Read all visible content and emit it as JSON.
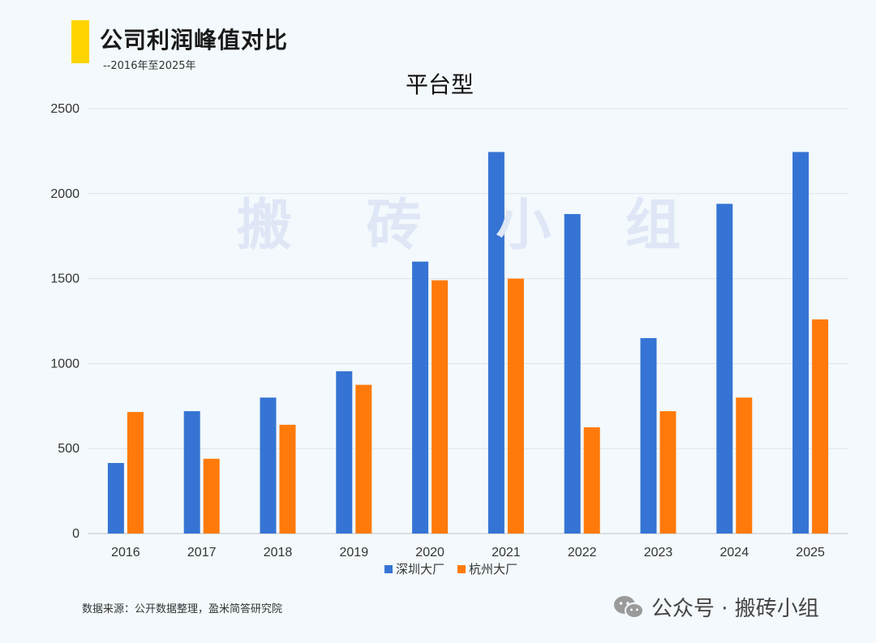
{
  "header": {
    "title": "公司利润峰值对比",
    "subtitle": "--2016年至2025年"
  },
  "watermark": "搬 砖 小 组",
  "source_note": "数据来源：公开数据整理，盈米简答研究院",
  "footer": {
    "brand_text": "公众号 · 搬砖小组",
    "icon": "wechat-icon"
  },
  "chart_data": {
    "type": "bar",
    "title": "平台型",
    "categories": [
      "2016",
      "2017",
      "2018",
      "2019",
      "2020",
      "2021",
      "2022",
      "2023",
      "2024",
      "2025"
    ],
    "series": [
      {
        "name": "深圳大厂",
        "color": "#3574d4",
        "values": [
          415,
          720,
          800,
          955,
          1600,
          2245,
          1880,
          1150,
          1940,
          2245
        ]
      },
      {
        "name": "杭州大厂",
        "color": "#ff7a0a",
        "values": [
          715,
          440,
          640,
          875,
          1490,
          1500,
          625,
          720,
          800,
          1260
        ]
      }
    ],
    "yticks": [
      0,
      500,
      1000,
      1500,
      2000,
      2500
    ],
    "ylim": [
      0,
      2500
    ],
    "grid": true,
    "legend_position": "bottom"
  }
}
